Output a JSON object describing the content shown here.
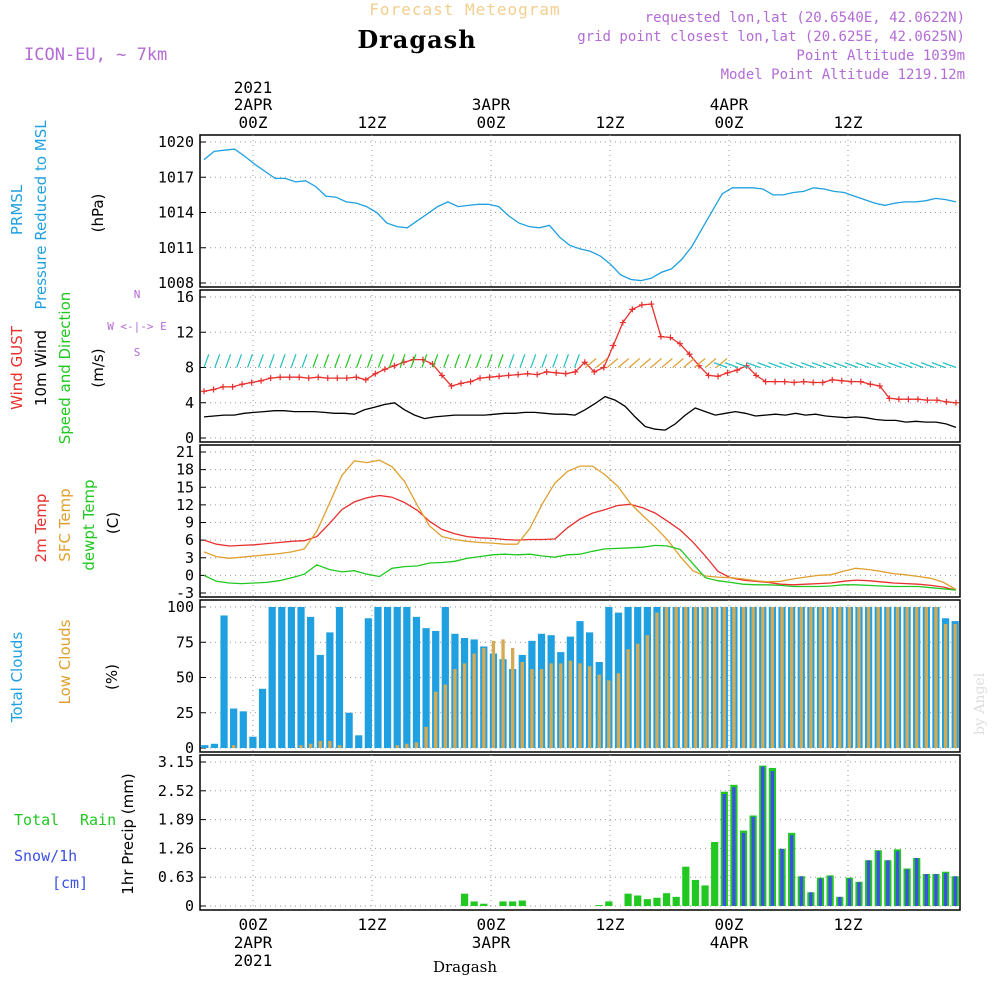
{
  "header": {
    "super_title": "Forecast Meteogram",
    "location": "Dragash",
    "model": "ICON-EU, ~ 7km",
    "requested": "requested lon,lat (20.6540E, 42.0622N)",
    "grid_point": "grid point closest lon,lat (20.625E, 42.0625N)",
    "point_altitude": "Point Altitude 1039m",
    "model_altitude": "Model Point Altitude 1219.12m",
    "footer_location": "Dragash",
    "watermark": "by Angel"
  },
  "time_axis": {
    "year": "2021",
    "ticks": [
      "00Z",
      "12Z",
      "00Z",
      "12Z",
      "00Z",
      "12Z"
    ],
    "dates": [
      "2APR",
      "3APR",
      "4APR"
    ]
  },
  "colors": {
    "pressure": "#1fa0e0",
    "gust": "#e8302e",
    "wind": "#000000",
    "direction": "#22c822",
    "temp2m": "#e8302e",
    "sfc": "#e0a030",
    "dewpt": "#22c822",
    "total_clouds": "#1fa0e0",
    "low_clouds": "#d4aa55",
    "rain": "#22c822",
    "snow": "#3c50e6",
    "label_purple": "#b36bd6"
  },
  "panel_labels": {
    "pressure": {
      "l1": "PRMSL",
      "l2": "Pressure Reduced to MSL",
      "unit": "(hPa)"
    },
    "wind": {
      "l1": "Wind GUST",
      "l2": "10m Wind",
      "l3": "Speed and Direction",
      "unit": "(m/s)",
      "compass_n": "N",
      "compass_s": "S",
      "compass_we": "W <-|-> E"
    },
    "temp": {
      "l1": "2m Temp",
      "l2": "SFC Temp",
      "l3": "dewpt Temp",
      "unit": "(C)"
    },
    "cloud": {
      "l1": "Total Clouds",
      "l2": "Low Clouds",
      "unit": "(%)"
    },
    "precip": {
      "l1": "Total",
      "l1b": "Rain",
      "l2": "Snow/1h",
      "l3": "[cm]",
      "unit": "1hr Precip (mm)"
    }
  },
  "chart_data": [
    {
      "type": "line",
      "title": "PRMSL Pressure Reduced to MSL",
      "ylabel": "(hPa)",
      "ylim": [
        1008,
        1020
      ],
      "yticks": [
        "1008",
        "1011",
        "1014",
        "1017",
        "1020"
      ],
      "series": [
        {
          "name": "PRMSL",
          "values": [
            1018.5,
            1019.2,
            1019.3,
            1019.4,
            1018.8,
            1018.1,
            1017.5,
            1016.9,
            1016.9,
            1016.6,
            1016.7,
            1016.2,
            1015.4,
            1015.3,
            1014.9,
            1014.8,
            1014.5,
            1014.0,
            1013.1,
            1012.8,
            1012.7,
            1013.3,
            1013.9,
            1014.5,
            1014.9,
            1014.5,
            1014.6,
            1014.7,
            1014.7,
            1014.5,
            1013.7,
            1013.1,
            1012.8,
            1012.7,
            1012.9,
            1011.9,
            1011.2,
            1010.9,
            1010.7,
            1010.3,
            1009.6,
            1008.7,
            1008.3,
            1008.2,
            1008.4,
            1008.9,
            1009.2,
            1010.0,
            1011.1,
            1012.6,
            1014.1,
            1015.6,
            1016.1,
            1016.1,
            1016.1,
            1016.0,
            1015.5,
            1015.5,
            1015.7,
            1015.8,
            1016.1,
            1016.0,
            1015.8,
            1015.7,
            1015.4,
            1015.1,
            1014.8,
            1014.6,
            1014.8,
            1014.9,
            1014.9,
            1015.0,
            1015.2,
            1015.1,
            1014.9
          ]
        }
      ]
    },
    {
      "type": "line",
      "title": "Wind GUST / 10m Wind Speed and Direction",
      "ylabel": "(m/s)",
      "ylim": [
        0,
        16
      ],
      "yticks": [
        "0",
        "4",
        "8",
        "12",
        "16"
      ],
      "series": [
        {
          "name": "Wind GUST",
          "values": [
            5.3,
            5.5,
            5.8,
            5.8,
            6.1,
            6.3,
            6.5,
            6.8,
            6.9,
            6.9,
            6.9,
            6.8,
            6.9,
            6.8,
            6.8,
            6.8,
            6.9,
            6.6,
            7.3,
            7.8,
            8.2,
            8.6,
            8.9,
            8.9,
            8.4,
            7.1,
            5.9,
            6.2,
            6.4,
            6.8,
            6.9,
            7.0,
            7.1,
            7.2,
            7.3,
            7.2,
            7.5,
            7.4,
            7.3,
            7.5,
            8.6,
            7.5,
            8.0,
            10.5,
            13.1,
            14.6,
            15.1,
            15.2,
            11.5,
            11.4,
            10.7,
            9.5,
            8.2,
            7.1,
            7.0,
            7.4,
            7.7,
            8.2,
            7.1,
            6.4,
            6.4,
            6.4,
            6.3,
            6.4,
            6.3,
            6.3,
            6.6,
            6.5,
            6.4,
            6.4,
            6.1,
            5.9,
            4.5,
            4.4,
            4.4,
            4.4,
            4.3,
            4.3,
            4.1,
            4.0
          ]
        },
        {
          "name": "10m Wind",
          "values": [
            2.4,
            2.5,
            2.6,
            2.6,
            2.8,
            2.9,
            3.0,
            3.1,
            3.1,
            3.0,
            3.0,
            3.0,
            2.9,
            2.8,
            2.8,
            2.7,
            3.2,
            3.5,
            3.8,
            4.0,
            3.2,
            2.6,
            2.2,
            2.4,
            2.5,
            2.6,
            2.6,
            2.6,
            2.6,
            2.7,
            2.8,
            2.8,
            2.9,
            2.9,
            2.8,
            2.7,
            2.7,
            2.6,
            3.2,
            3.9,
            4.7,
            4.3,
            3.6,
            2.4,
            1.3,
            1.0,
            0.9,
            1.6,
            2.6,
            3.4,
            3.0,
            2.6,
            2.8,
            3.0,
            2.8,
            2.5,
            2.6,
            2.7,
            2.6,
            2.8,
            2.6,
            2.7,
            2.5,
            2.4,
            2.3,
            2.4,
            2.3,
            2.1,
            2.0,
            2.0,
            1.8,
            1.9,
            1.8,
            1.8,
            1.6,
            1.2
          ]
        }
      ]
    },
    {
      "type": "line",
      "title": "2m Temp / SFC Temp / dewpt Temp",
      "ylabel": "(C)",
      "ylim": [
        -3,
        21
      ],
      "yticks": [
        "-3",
        "0",
        "3",
        "6",
        "9",
        "12",
        "15",
        "18",
        "21"
      ],
      "series": [
        {
          "name": "2m Temp",
          "values": [
            6.0,
            5.3,
            5.0,
            5.1,
            5.2,
            5.4,
            5.6,
            5.8,
            5.9,
            6.6,
            8.8,
            11.2,
            12.5,
            13.2,
            13.6,
            13.3,
            12.4,
            11.1,
            9.2,
            7.8,
            7.1,
            6.6,
            6.4,
            6.3,
            6.1,
            6.0,
            6.1,
            6.1,
            6.2,
            8.1,
            9.6,
            10.6,
            11.2,
            11.9,
            12.1,
            11.5,
            10.6,
            9.2,
            7.7,
            5.7,
            3.3,
            0.7,
            -0.4,
            -0.8,
            -1.0,
            -1.2,
            -1.5,
            -1.6,
            -1.5,
            -1.4,
            -1.3,
            -1.0,
            -0.8,
            -0.9,
            -1.1,
            -1.3,
            -1.4,
            -1.5,
            -1.7,
            -2.0,
            -2.5
          ]
        },
        {
          "name": "SFC Temp",
          "values": [
            4.0,
            3.2,
            2.9,
            3.1,
            3.3,
            3.5,
            3.7,
            4.0,
            4.5,
            7.5,
            12.2,
            17.0,
            19.5,
            19.2,
            19.6,
            18.5,
            16.0,
            12.0,
            8.4,
            6.6,
            6.1,
            5.8,
            5.6,
            5.5,
            5.3,
            5.3,
            8.0,
            12.2,
            15.7,
            17.7,
            18.6,
            18.6,
            17.1,
            15.2,
            12.3,
            10.2,
            8.2,
            6.0,
            3.2,
            0.8,
            -0.1,
            -0.3,
            -0.4,
            -0.6,
            -0.9,
            -1.1,
            -1.0,
            -0.6,
            -0.3,
            0.0,
            0.1,
            0.7,
            1.2,
            1.0,
            0.7,
            0.3,
            0.1,
            -0.2,
            -0.5,
            -1.2,
            -2.4
          ]
        },
        {
          "name": "dewpt Temp",
          "values": [
            0.0,
            -1.0,
            -1.3,
            -1.4,
            -1.3,
            -1.2,
            -0.9,
            -0.4,
            0.2,
            1.8,
            1.0,
            0.6,
            0.8,
            0.2,
            -0.2,
            1.2,
            1.5,
            1.6,
            2.1,
            2.2,
            2.4,
            2.9,
            3.2,
            3.5,
            3.6,
            3.5,
            3.6,
            3.3,
            3.1,
            3.5,
            3.6,
            4.1,
            4.5,
            4.6,
            4.7,
            4.8,
            5.1,
            5.0,
            4.4,
            2.0,
            -0.4,
            -0.9,
            -1.2,
            -1.5,
            -1.6,
            -1.6,
            -1.7,
            -1.9,
            -1.9,
            -1.9,
            -1.8,
            -1.6,
            -1.6,
            -1.7,
            -1.8,
            -1.9,
            -1.9,
            -1.9,
            -2.1,
            -2.3,
            -2.5
          ]
        }
      ]
    },
    {
      "type": "bar",
      "title": "Total Clouds / Low Clouds",
      "ylabel": "(%)",
      "ylim": [
        0,
        100
      ],
      "yticks": [
        "0",
        "25",
        "50",
        "75",
        "100"
      ],
      "series": [
        {
          "name": "Total Clouds",
          "values": [
            2,
            3,
            94,
            28,
            26,
            8,
            42,
            100,
            100,
            100,
            100,
            93,
            66,
            82,
            100,
            25,
            9,
            92,
            100,
            100,
            100,
            100,
            93,
            85,
            83,
            100,
            81,
            78,
            77,
            72,
            67,
            63,
            56,
            66,
            76,
            81,
            80,
            68,
            79,
            90,
            82,
            61,
            100,
            96,
            100,
            100,
            100,
            100,
            100,
            100,
            100,
            100,
            100,
            100,
            100,
            100,
            100,
            100,
            100,
            100,
            100,
            100,
            100,
            100,
            100,
            100,
            100,
            100,
            100,
            100,
            100,
            100,
            100,
            100,
            100,
            100,
            100,
            92,
            90
          ]
        },
        {
          "name": "Low Clouds",
          "values": [
            0,
            0,
            0,
            2,
            0,
            0,
            0,
            0,
            0,
            0,
            2,
            3,
            5,
            5,
            2,
            0,
            0,
            0,
            0,
            0,
            2,
            3,
            4,
            15,
            40,
            45,
            56,
            60,
            67,
            71,
            76,
            77,
            71,
            61,
            56,
            56,
            60,
            60,
            62,
            60,
            58,
            52,
            48,
            53,
            70,
            74,
            80,
            96,
            100,
            100,
            100,
            100,
            100,
            100,
            100,
            100,
            100,
            100,
            100,
            100,
            100,
            100,
            100,
            100,
            100,
            100,
            100,
            100,
            100,
            100,
            100,
            100,
            100,
            100,
            100,
            100,
            100,
            88,
            88
          ]
        }
      ]
    },
    {
      "type": "bar",
      "title": "1hr Precip",
      "ylabel": "1hr Precip (mm)",
      "ylim": [
        0,
        3.15
      ],
      "yticks": [
        "0",
        "0.63",
        "1.26",
        "1.89",
        "2.52",
        "3.15"
      ],
      "series": [
        {
          "name": "Total Rain",
          "values": [
            0,
            0,
            0,
            0,
            0,
            0,
            0,
            0,
            0,
            0,
            0,
            0,
            0,
            0,
            0,
            0,
            0,
            0,
            0,
            0,
            0,
            0,
            0,
            0,
            0,
            0,
            0,
            0.27,
            0.1,
            0.05,
            0,
            0.1,
            0.1,
            0.12,
            0,
            0,
            0,
            0,
            0,
            0,
            0,
            0.02,
            0.1,
            0,
            0.27,
            0.23,
            0.15,
            0.18,
            0.28,
            0.2,
            0.86,
            0.57,
            0.45,
            1.4,
            2.5,
            2.65,
            1.65,
            1.98,
            3.07,
            3.02,
            1.25,
            1.6,
            0.65,
            0.3,
            0.62,
            0.67,
            0.2,
            0.62,
            0.53,
            1.0,
            1.22,
            1.0,
            1.24,
            0.82,
            1.05,
            0.7,
            0.7,
            0.75,
            0.65
          ]
        },
        {
          "name": "Snow/1h",
          "values": [
            0,
            0,
            0,
            0,
            0,
            0,
            0,
            0,
            0,
            0,
            0,
            0,
            0,
            0,
            0,
            0,
            0,
            0,
            0,
            0,
            0,
            0,
            0,
            0,
            0,
            0,
            0,
            0,
            0,
            0,
            0,
            0,
            0,
            0,
            0,
            0,
            0,
            0,
            0,
            0,
            0,
            0,
            0,
            0,
            0,
            0,
            0,
            0,
            0,
            0,
            0,
            0,
            0,
            0,
            2.45,
            2.6,
            1.6,
            1.95,
            3.05,
            2.95,
            1.25,
            1.55,
            0.65,
            0.3,
            0.6,
            0.65,
            0.2,
            0.6,
            0.52,
            1.0,
            1.2,
            1.0,
            1.2,
            0.8,
            1.05,
            0.7,
            0.7,
            0.72,
            0.65
          ]
        }
      ]
    }
  ]
}
